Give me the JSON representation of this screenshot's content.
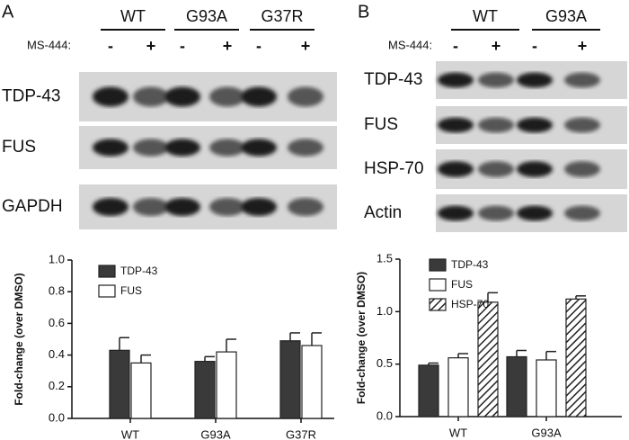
{
  "panels": [
    {
      "label": "A",
      "groups": [
        "WT",
        "G93A",
        "G37R"
      ],
      "treatment_label": "MS-444:",
      "signs": [
        "-",
        "+"
      ],
      "bands": [
        "TDP-43",
        "FUS",
        "GAPDH"
      ]
    },
    {
      "label": "B",
      "groups": [
        "WT",
        "G93A"
      ],
      "treatment_label": "MS-444:",
      "signs": [
        "-",
        "+"
      ],
      "bands": [
        "TDP-43",
        "FUS",
        "HSP-70",
        "Actin"
      ]
    }
  ],
  "chart_data": [
    {
      "type": "bar",
      "ylabel": "Fold-change (over DMSO)",
      "categories": [
        "WT",
        "G93A",
        "G37R"
      ],
      "series": [
        {
          "name": "TDP-43",
          "color": "#3a3a3a",
          "values": [
            0.43,
            0.36,
            0.49
          ],
          "errors": [
            0.08,
            0.03,
            0.05
          ]
        },
        {
          "name": "FUS",
          "color": "#ffffff",
          "values": [
            0.35,
            0.42,
            0.46
          ],
          "errors": [
            0.05,
            0.08,
            0.08
          ]
        }
      ],
      "ylim": [
        0,
        1.0
      ],
      "yticks": [
        {
          "value": 0,
          "label": "0.0"
        },
        {
          "value": 0.2,
          "label": "0.2"
        },
        {
          "value": 0.4,
          "label": "0.4"
        },
        {
          "value": 0.6,
          "label": "0.6"
        },
        {
          "value": 0.8,
          "label": "0.8"
        },
        {
          "value": 1.0,
          "label": "1.0"
        }
      ]
    },
    {
      "type": "bar",
      "ylabel": "Fold-change (over DMSO)",
      "categories": [
        "WT",
        "G93A"
      ],
      "series": [
        {
          "name": "TDP-43",
          "color": "#3a3a3a",
          "values": [
            0.49,
            0.57
          ],
          "errors": [
            0.02,
            0.06
          ]
        },
        {
          "name": "FUS",
          "color": "#ffffff",
          "values": [
            0.56,
            0.54
          ],
          "errors": [
            0.04,
            0.08
          ]
        },
        {
          "name": "HSP-70",
          "color": "#ffffff",
          "pattern": "hatch",
          "values": [
            1.09,
            1.12
          ],
          "errors": [
            0.09,
            0.03
          ]
        }
      ],
      "ylim": [
        0,
        1.5
      ],
      "yticks": [
        {
          "value": 0,
          "label": "0.0"
        },
        {
          "value": 0.5,
          "label": "0.5"
        },
        {
          "value": 1.0,
          "label": "1.0"
        },
        {
          "value": 1.5,
          "label": "1.5"
        }
      ]
    }
  ]
}
